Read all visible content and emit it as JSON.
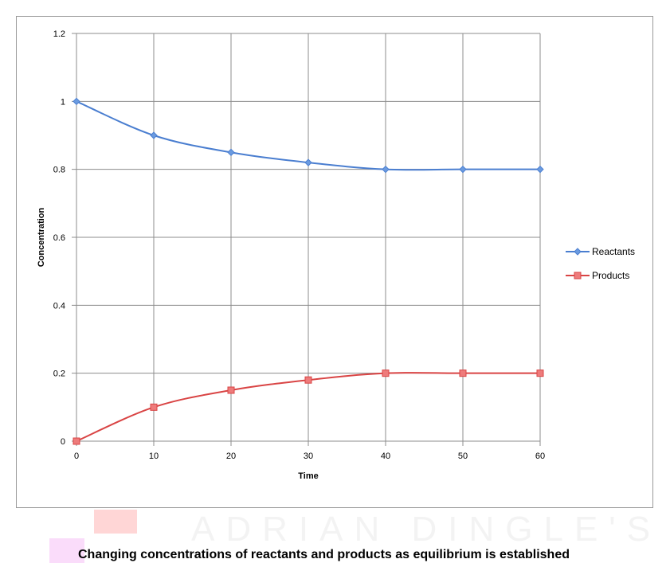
{
  "chart_data": {
    "type": "line",
    "x": [
      0,
      10,
      20,
      30,
      40,
      50,
      60
    ],
    "series": [
      {
        "name": "Reactants",
        "values": [
          1,
          0.9,
          0.85,
          0.82,
          0.8,
          0.8,
          0.8
        ],
        "color": "#4a7ed0",
        "marker": "diamond"
      },
      {
        "name": "Products",
        "values": [
          0,
          0.1,
          0.15,
          0.18,
          0.2,
          0.2,
          0.2
        ],
        "color": "#d94444",
        "marker": "square"
      }
    ],
    "xlabel": "Time",
    "ylabel": "Concentration",
    "xlim": [
      0,
      60
    ],
    "ylim": [
      0,
      1.2
    ],
    "xticks": [
      "0",
      "10",
      "20",
      "30",
      "40",
      "50",
      "60"
    ],
    "yticks": [
      "0",
      "0.2",
      "0.4",
      "0.6",
      "0.8",
      "1",
      "1.2"
    ],
    "grid": true,
    "smooth": true,
    "legend": "right"
  },
  "watermark": "ADRIAN DINGLE'S",
  "caption": "Changing concentrations of reactants and products as equilibrium is established"
}
